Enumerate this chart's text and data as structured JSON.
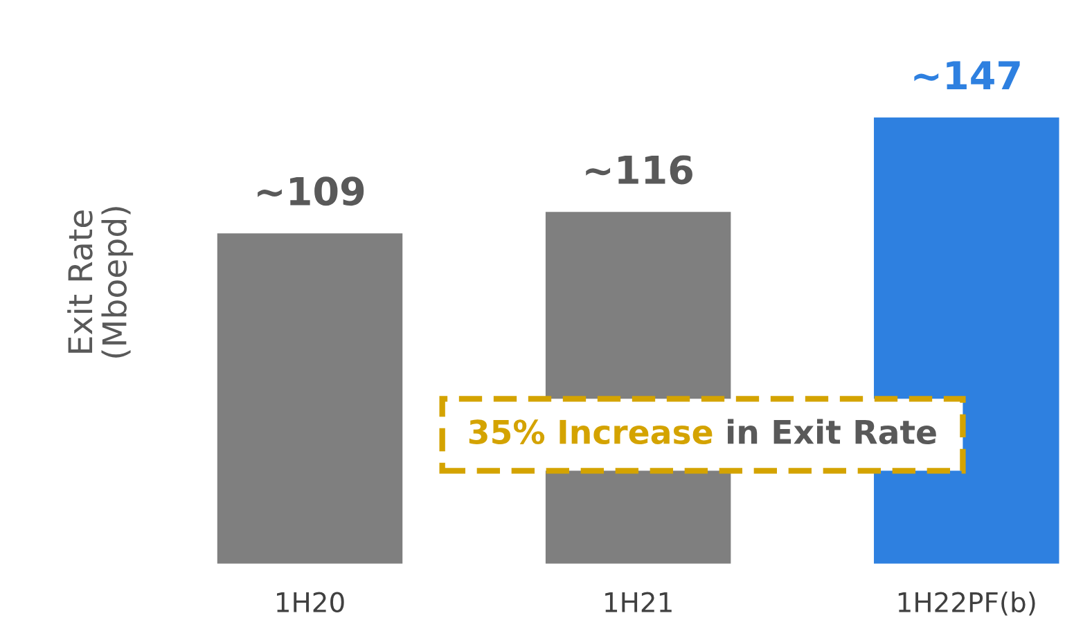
{
  "chart_data": {
    "type": "bar",
    "ylabel": "Exit Rate\n(Mboepd)",
    "categories": [
      "1H20",
      "1H21",
      "1H22PF(b)"
    ],
    "values": [
      109,
      116,
      147
    ],
    "colors": [
      "#7f7f7f",
      "#7f7f7f",
      "#2e80e0"
    ],
    "value_labels": [
      "~109",
      "~116",
      "~147"
    ],
    "annotations": [
      "35% Increase",
      "in Exit Rate"
    ],
    "grid": false,
    "legend": false
  }
}
